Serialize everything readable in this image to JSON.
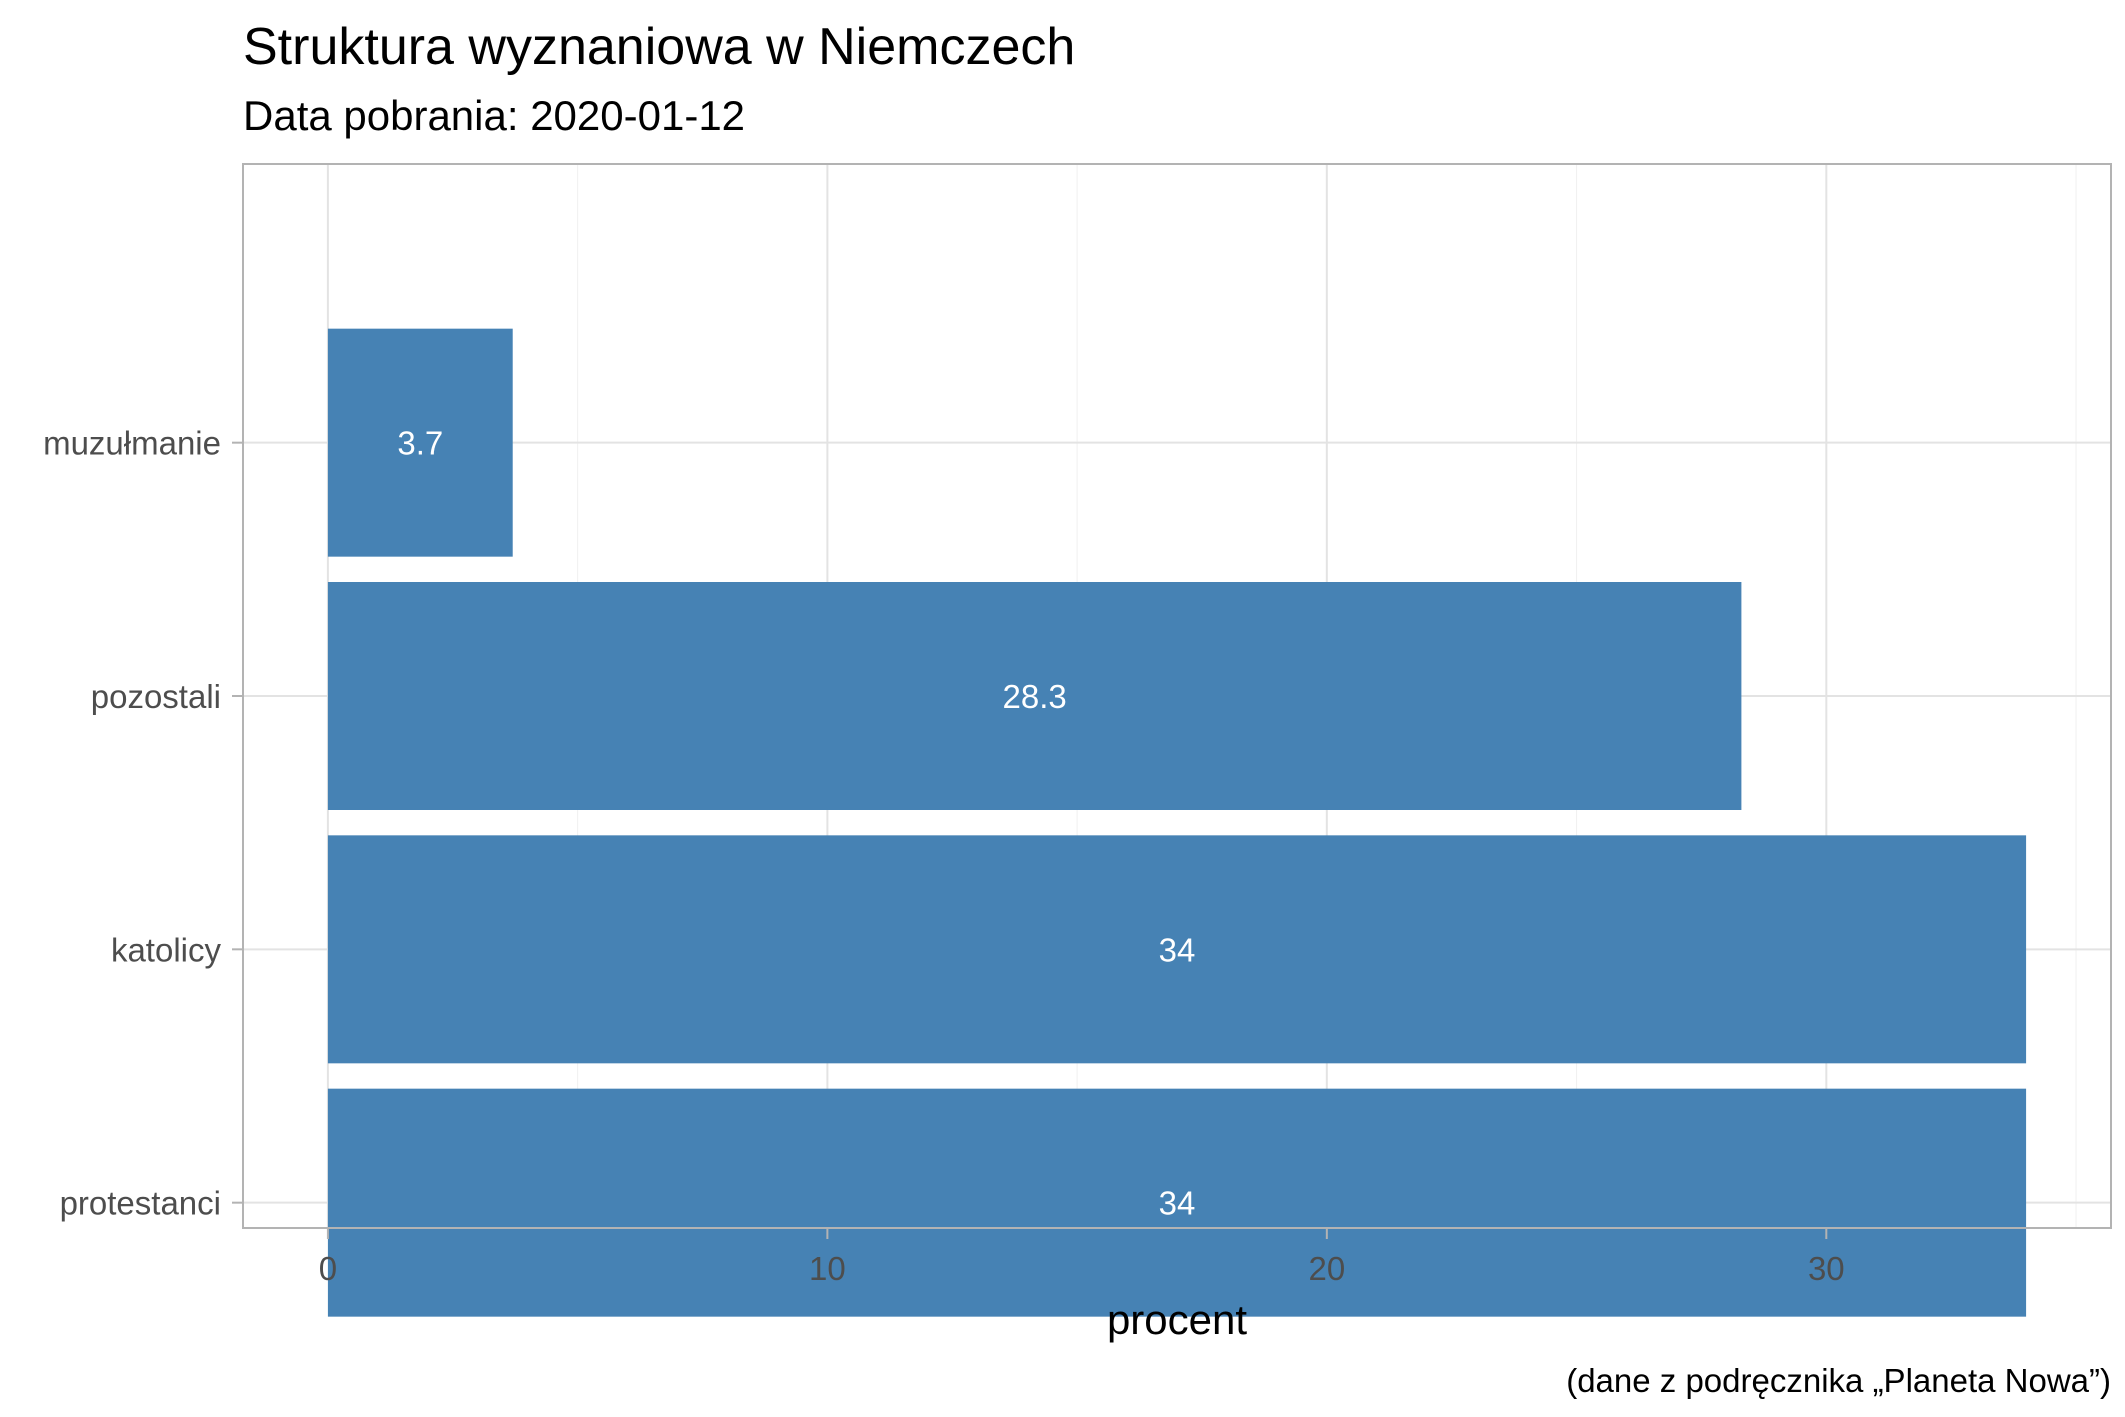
{
  "chart_data": {
    "type": "bar",
    "orientation": "horizontal",
    "title": "Struktura wyznaniowa w Niemczech",
    "subtitle": "Data pobrania: 2020-01-12",
    "caption": "(dane z podręcznika „Planeta Nowa”)",
    "xlabel": "procent",
    "ylabel": "",
    "categories": [
      "protestanci",
      "katolicy",
      "pozostali",
      "muzułmanie"
    ],
    "values": [
      34,
      34,
      28.3,
      3.7
    ],
    "data_labels": [
      "34",
      "34",
      "28.3",
      "3.7"
    ],
    "xlim": [
      -1.7,
      35.7
    ],
    "x_ticks": [
      0,
      10,
      20,
      30
    ],
    "x_tick_labels": [
      "0",
      "10",
      "20",
      "30"
    ],
    "grid": true,
    "legend": "none",
    "bar_color": "#4682b4"
  }
}
